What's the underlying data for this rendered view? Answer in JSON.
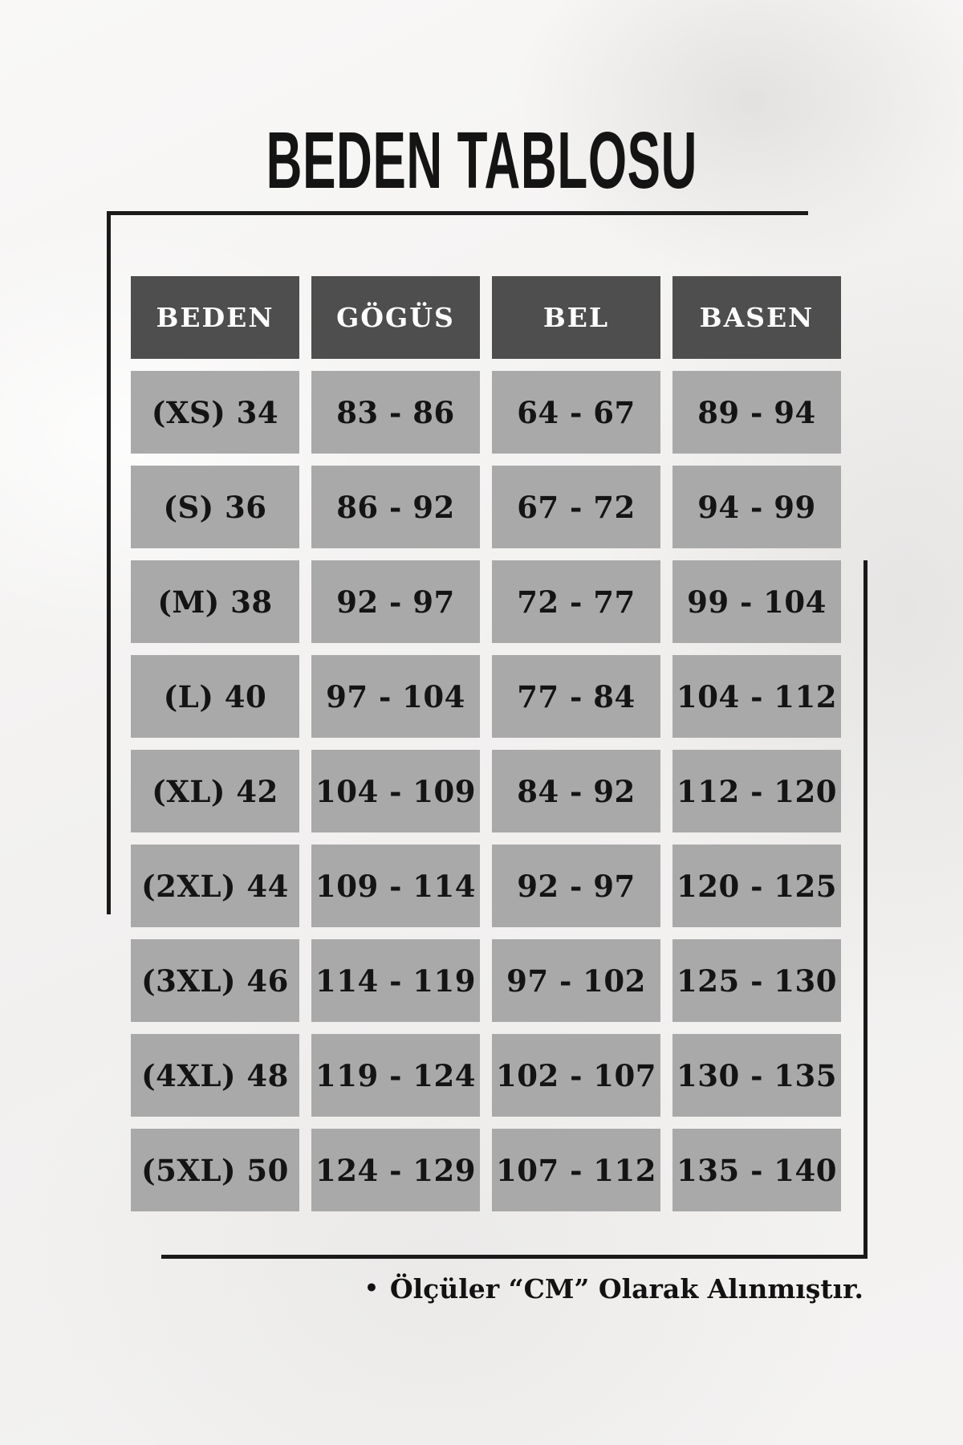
{
  "title": "BEDEN TABLOSU",
  "note": {
    "bullet": "•",
    "text": "Ölçüler “CM” Olarak Alınmıştır."
  },
  "colors": {
    "header_bg": "#4e4e4e",
    "header_text": "#ffffff",
    "cell_bg": "#a9a9a9",
    "cell_text": "#141414",
    "line": "#1a1a1a",
    "background": "#f3f2f1"
  },
  "chart_data": {
    "type": "table",
    "title": "BEDEN TABLOSU",
    "columns": [
      "BEDEN",
      "GÖGÜS",
      "BEL",
      "BASEN"
    ],
    "rows": [
      [
        "(XS) 34",
        "83 - 86",
        "64 - 67",
        "89 - 94"
      ],
      [
        "(S) 36",
        "86 - 92",
        "67 - 72",
        "94 - 99"
      ],
      [
        "(M) 38",
        "92 - 97",
        "72 - 77",
        "99 - 104"
      ],
      [
        "(L) 40",
        "97 - 104",
        "77 - 84",
        "104 - 112"
      ],
      [
        "(XL) 42",
        "104 - 109",
        "84 - 92",
        "112 - 120"
      ],
      [
        "(2XL) 44",
        "109 - 114",
        "92 - 97",
        "120 - 125"
      ],
      [
        "(3XL) 46",
        "114 - 119",
        "97 - 102",
        "125 - 130"
      ],
      [
        "(4XL) 48",
        "119 - 124",
        "102 - 107",
        "130 - 135"
      ],
      [
        "(5XL) 50",
        "124 - 129",
        "107 - 112",
        "135 - 140"
      ]
    ],
    "note": "Ölçüler “CM” Olarak Alınmıştır."
  }
}
